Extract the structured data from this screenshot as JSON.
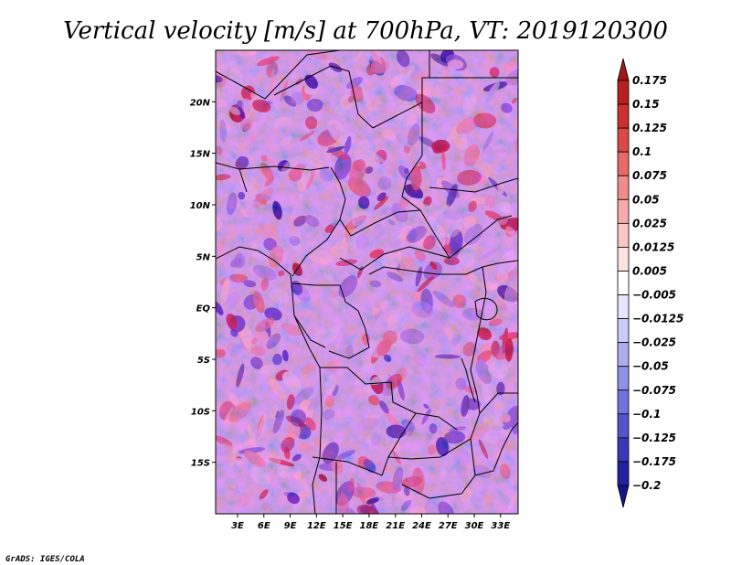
{
  "chart_data": {
    "type": "heatmap",
    "title": "Vertical velocity [m/s] at 700hPa, VT: 2019120300",
    "variable": "Vertical velocity",
    "units": "m/s",
    "level": "700hPa",
    "valid_time": "2019120300",
    "x_ticks": [
      "3E",
      "6E",
      "9E",
      "12E",
      "15E",
      "18E",
      "21E",
      "24E",
      "27E",
      "30E",
      "33E"
    ],
    "x_tick_values": [
      3,
      6,
      9,
      12,
      15,
      18,
      21,
      24,
      27,
      30,
      33
    ],
    "y_ticks": [
      "20N",
      "15N",
      "10N",
      "5N",
      "EQ",
      "5S",
      "10S",
      "15S"
    ],
    "y_tick_values": [
      20,
      15,
      10,
      5,
      0,
      -5,
      -10,
      -15
    ],
    "xlim": [
      0.5,
      35
    ],
    "ylim": [
      -20,
      25
    ],
    "colorbar": {
      "labels": [
        "0.175",
        "0.15",
        "0.125",
        "0.1",
        "0.075",
        "0.05",
        "0.025",
        "0.0125",
        "0.005",
        "−0.005",
        "−0.0125",
        "−0.025",
        "−0.05",
        "−0.075",
        "−0.1",
        "−0.125",
        "−0.175",
        "−0.2"
      ],
      "levels": [
        0.175,
        0.15,
        0.125,
        0.1,
        0.075,
        0.05,
        0.025,
        0.0125,
        0.005,
        -0.005,
        -0.0125,
        -0.025,
        -0.05,
        -0.075,
        -0.1,
        -0.125,
        -0.175,
        -0.2
      ],
      "colors": [
        "#a01818",
        "#b82020",
        "#cc3030",
        "#dc4848",
        "#e86a6a",
        "#f08c8c",
        "#f6aaaa",
        "#fac6c6",
        "#fde2e2",
        "#ffffff",
        "#e6e6fc",
        "#cacaf6",
        "#adadee",
        "#9090e6",
        "#7272dc",
        "#5454cc",
        "#3838b8",
        "#2222a0",
        "#14148a"
      ]
    },
    "colors": {
      "positive": "#d03a3a",
      "negative": "#4a4ad8",
      "border": "#000000"
    }
  },
  "footer": {
    "credit": "GrADS: IGES/COLA"
  }
}
